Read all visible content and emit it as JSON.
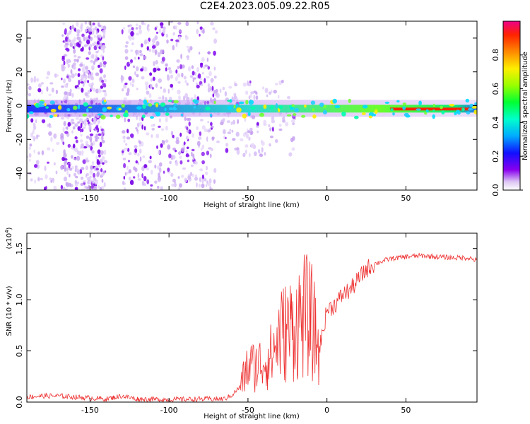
{
  "title": "C2E4.2023.005.09.22.R05",
  "chart_data": [
    {
      "type": "heatmap",
      "xlabel": "Height of straight line (km)",
      "ylabel": "Frequency (Hz)",
      "xlim": [
        -190,
        95
      ],
      "ylim": [
        -50,
        50
      ],
      "x_ticks": [
        -150,
        -100,
        -50,
        0,
        50
      ],
      "y_ticks": [
        -40,
        -20,
        0,
        20,
        40
      ],
      "colorbar": {
        "label": "Normalized spectral amplitude",
        "range": [
          0,
          1
        ],
        "ticks": [
          "0.0",
          "0.2",
          "0.4",
          "0.6",
          "0.8"
        ],
        "colormap": "rainbow"
      },
      "features": {
        "main_band": {
          "description": "narrow band near 0 Hz",
          "x_range": [
            -190,
            95
          ],
          "center_hz": -2,
          "amplitude_trend": "low at negative heights, rising to ~0.9 at positive heights"
        },
        "noise_regions": [
          {
            "x_range": [
              -168,
              -140
            ],
            "freq_range": [
              -50,
              50
            ]
          },
          {
            "x_range": [
              -130,
              -70
            ],
            "freq_range": [
              -50,
              50
            ]
          }
        ]
      }
    },
    {
      "type": "line",
      "xlabel": "Height of straight line (km)",
      "ylabel": "SNR (10 * v/v)",
      "y_multiplier": "(x10",
      "y_multiplier_exp": "4",
      "y_multiplier_close": ")",
      "xlim": [
        -190,
        95
      ],
      "ylim": [
        0,
        16500
      ],
      "x_ticks": [
        -150,
        -100,
        -50,
        0,
        50
      ],
      "y_ticks": [
        0,
        5000,
        10000,
        15000
      ],
      "y_tick_labels": [
        "0.0",
        "0.5",
        "1.0",
        "1.5"
      ],
      "color": "#ee3030",
      "series": [
        {
          "x": [
            -190,
            -180,
            -170,
            -160,
            -150,
            -140,
            -130,
            -120,
            -100,
            -80,
            -65,
            -60,
            -55,
            -50,
            -45,
            -40,
            -35,
            -30,
            -25,
            -20,
            -15,
            -10,
            -5,
            0,
            5,
            10,
            15,
            20,
            25,
            30,
            40,
            50,
            60,
            70,
            80,
            90,
            95
          ],
          "values": [
            500,
            600,
            600,
            500,
            400,
            300,
            600,
            300,
            250,
            300,
            300,
            700,
            1500,
            3500,
            3500,
            4000,
            4500,
            6500,
            7000,
            7500,
            8500,
            8000,
            5000,
            9000,
            9500,
            10500,
            11000,
            12000,
            13000,
            13500,
            14000,
            14200,
            14300,
            14200,
            14100,
            14100,
            13800
          ]
        }
      ]
    }
  ]
}
